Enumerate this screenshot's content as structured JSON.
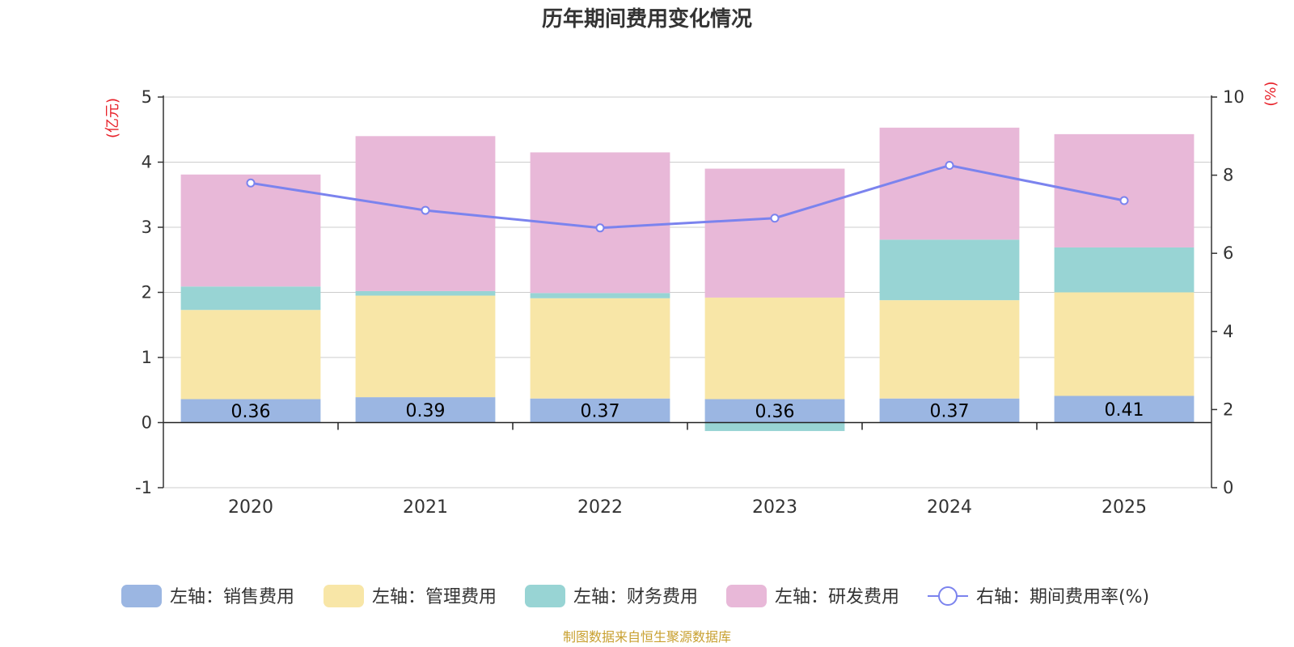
{
  "chart_data": {
    "type": "bar",
    "stacked": true,
    "title": "历年期间费用变化情况",
    "categories": [
      "2020",
      "2021",
      "2022",
      "2023",
      "2024",
      "2025"
    ],
    "left_axis": {
      "unit": "(亿元)",
      "range": [
        -1,
        5
      ],
      "ticks": [
        -1,
        0,
        1,
        2,
        3,
        4,
        5
      ]
    },
    "right_axis": {
      "unit": "(%)",
      "range": [
        0,
        10
      ],
      "ticks": [
        0,
        2,
        4,
        6,
        8,
        10
      ]
    },
    "series": [
      {
        "name": "左轴：销售费用",
        "axis": "left",
        "color": "#9bb6e2",
        "values": [
          0.36,
          0.39,
          0.37,
          0.36,
          0.37,
          0.41
        ],
        "labels": [
          "0.36",
          "0.39",
          "0.37",
          "0.36",
          "0.37",
          "0.41"
        ]
      },
      {
        "name": "左轴：管理费用",
        "axis": "left",
        "color": "#f8e6a7",
        "values": [
          1.37,
          1.56,
          1.54,
          1.56,
          1.51,
          1.59
        ]
      },
      {
        "name": "左轴：财务费用",
        "axis": "left",
        "color": "#98d4d4",
        "values": [
          0.36,
          0.07,
          0.08,
          -0.13,
          0.93,
          0.69
        ]
      },
      {
        "name": "左轴：研发费用",
        "axis": "left",
        "color": "#e8b8d8",
        "values": [
          1.72,
          2.38,
          2.16,
          1.98,
          1.72,
          1.74
        ]
      }
    ],
    "line_series": {
      "name": "右轴：期间费用率(%)",
      "axis": "right",
      "color": "#7b83ee",
      "values": [
        7.8,
        7.1,
        6.65,
        6.9,
        8.25,
        7.35
      ]
    },
    "legend_position": "bottom",
    "grid": true,
    "source": "制图数据来自恒生聚源数据库",
    "colors": {
      "unit": "#e8222a",
      "source": "#c8a030",
      "axis": "#333333",
      "grid": "#cccccc"
    }
  }
}
